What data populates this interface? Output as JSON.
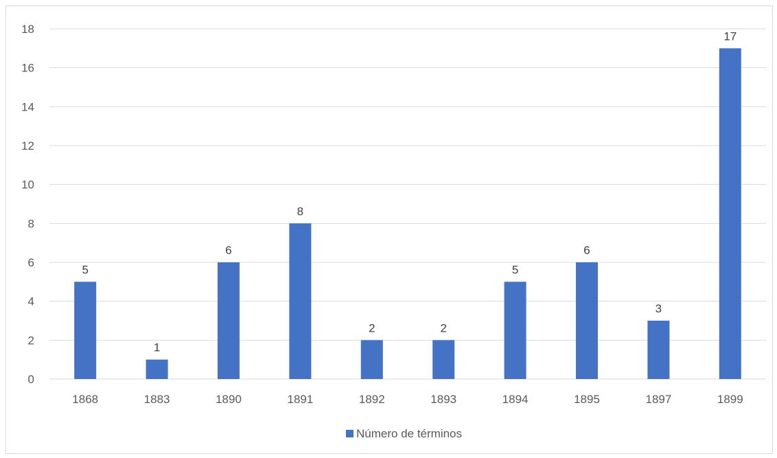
{
  "chart_data": {
    "type": "bar",
    "categories": [
      "1868",
      "1883",
      "1890",
      "1891",
      "1892",
      "1893",
      "1894",
      "1895",
      "1897",
      "1899"
    ],
    "series": [
      {
        "name": "Número de términos",
        "values": [
          5,
          1,
          6,
          8,
          2,
          2,
          5,
          6,
          3,
          17
        ],
        "color": "#4472c4"
      }
    ],
    "title": "",
    "xlabel": "",
    "ylabel": "",
    "ylim": [
      0,
      18
    ],
    "yticks": [
      0,
      2,
      4,
      6,
      8,
      10,
      12,
      14,
      16,
      18
    ],
    "grid": true,
    "gridline_color": "#d9d9d9",
    "data_labels": true,
    "legend": {
      "position": "bottom",
      "entries": [
        "Número de términos"
      ]
    }
  }
}
